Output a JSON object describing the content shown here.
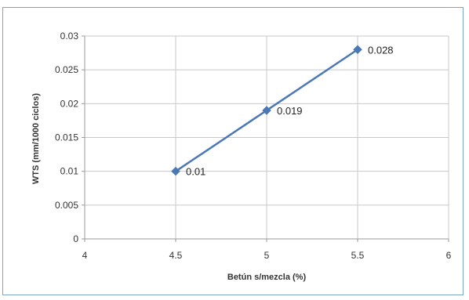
{
  "chart_data": {
    "type": "line",
    "title": "",
    "xlabel": "Betún s/mezcla (%)",
    "ylabel": "WTS (mm/1000 ciclos)",
    "xlim": [
      4,
      6
    ],
    "ylim": [
      0,
      0.03
    ],
    "x_ticks": [
      "4",
      "4.5",
      "5",
      "5.5",
      "6"
    ],
    "y_ticks": [
      "0",
      "0.005",
      "0.01",
      "0.015",
      "0.02",
      "0.025",
      "0.03"
    ],
    "grid": true,
    "legend": "none",
    "series": [
      {
        "x": [
          4.5,
          5,
          5.5
        ],
        "y": [
          0.01,
          0.019,
          0.028
        ],
        "labels": [
          "0.01",
          "0.019",
          "0.028"
        ],
        "color": "#4a78b5",
        "marker": "diamond"
      }
    ]
  },
  "colors": {
    "frame_border": "#7aa7c9",
    "grid": "#c8c8c8",
    "series": "#4a78b5"
  }
}
